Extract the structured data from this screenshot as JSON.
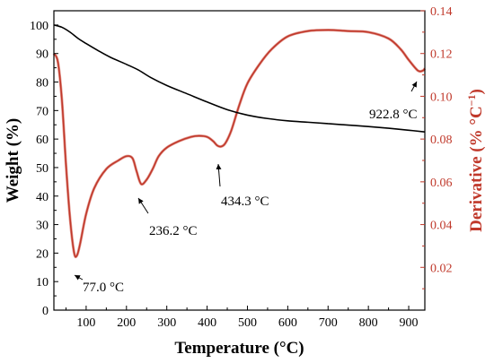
{
  "chart_data": {
    "type": "line",
    "xlabel": "Temperature (°C)",
    "ylabel_left": "Weight (%)",
    "ylabel_right": "Derivative (% °C",
    "ylabel_right_sup": "−1",
    "ylabel_right_suffix": ")",
    "xlim": [
      20,
      940
    ],
    "ylim_left": [
      0,
      105
    ],
    "ylim_right": [
      0.0,
      0.14
    ],
    "x_ticks": [
      100,
      200,
      300,
      400,
      500,
      600,
      700,
      800,
      900
    ],
    "y_ticks_left": [
      0,
      10,
      20,
      30,
      40,
      50,
      60,
      70,
      80,
      90,
      100
    ],
    "y_ticks_right": [
      0.02,
      0.04,
      0.06,
      0.08,
      0.1,
      0.12,
      0.14
    ],
    "y_tick_labels_right": [
      "0.02",
      "0.04",
      "0.06",
      "0.08",
      "0.10",
      "0.12",
      "0.14"
    ],
    "colors": {
      "weight": "#000000",
      "derivative": "#c0392b",
      "derivative_noise": "#e59b93"
    },
    "series": [
      {
        "axis": "left",
        "x": [
          20,
          40,
          60,
          80,
          100,
          130,
          160,
          200,
          230,
          260,
          300,
          350,
          400,
          450,
          500,
          550,
          600,
          650,
          700,
          750,
          800,
          850,
          900,
          940
        ],
        "values": [
          100,
          99.2,
          97.5,
          95.3,
          93.5,
          91.0,
          88.7,
          86.2,
          84.2,
          81.6,
          78.8,
          75.9,
          73.0,
          70.3,
          68.4,
          67.2,
          66.4,
          65.9,
          65.4,
          64.9,
          64.4,
          63.8,
          63.1,
          62.5
        ]
      },
      {
        "axis": "right",
        "x": [
          20,
          30,
          40,
          50,
          60,
          70,
          77,
          85,
          100,
          120,
          150,
          180,
          200,
          215,
          225,
          236.2,
          250,
          265,
          280,
          300,
          330,
          360,
          380,
          400,
          415,
          425,
          434.3,
          445,
          460,
          480,
          500,
          530,
          560,
          600,
          650,
          700,
          750,
          800,
          850,
          880,
          900,
          922.8,
          935,
          940
        ],
        "values": [
          0.12,
          0.116,
          0.098,
          0.068,
          0.043,
          0.027,
          0.0255,
          0.031,
          0.045,
          0.057,
          0.066,
          0.07,
          0.072,
          0.071,
          0.065,
          0.059,
          0.061,
          0.066,
          0.072,
          0.076,
          0.079,
          0.081,
          0.0815,
          0.081,
          0.079,
          0.077,
          0.0765,
          0.078,
          0.084,
          0.096,
          0.106,
          0.115,
          0.122,
          0.128,
          0.1305,
          0.131,
          0.1305,
          0.13,
          0.127,
          0.122,
          0.117,
          0.112,
          0.112,
          0.113
        ]
      }
    ],
    "annotations": [
      {
        "text": "77.0 °C",
        "x": 77.0
      },
      {
        "text": "236.2 °C",
        "x": 236.2
      },
      {
        "text": "434.3 °C",
        "x": 434.3
      },
      {
        "text": "922.8 °C",
        "x": 922.8
      }
    ]
  }
}
